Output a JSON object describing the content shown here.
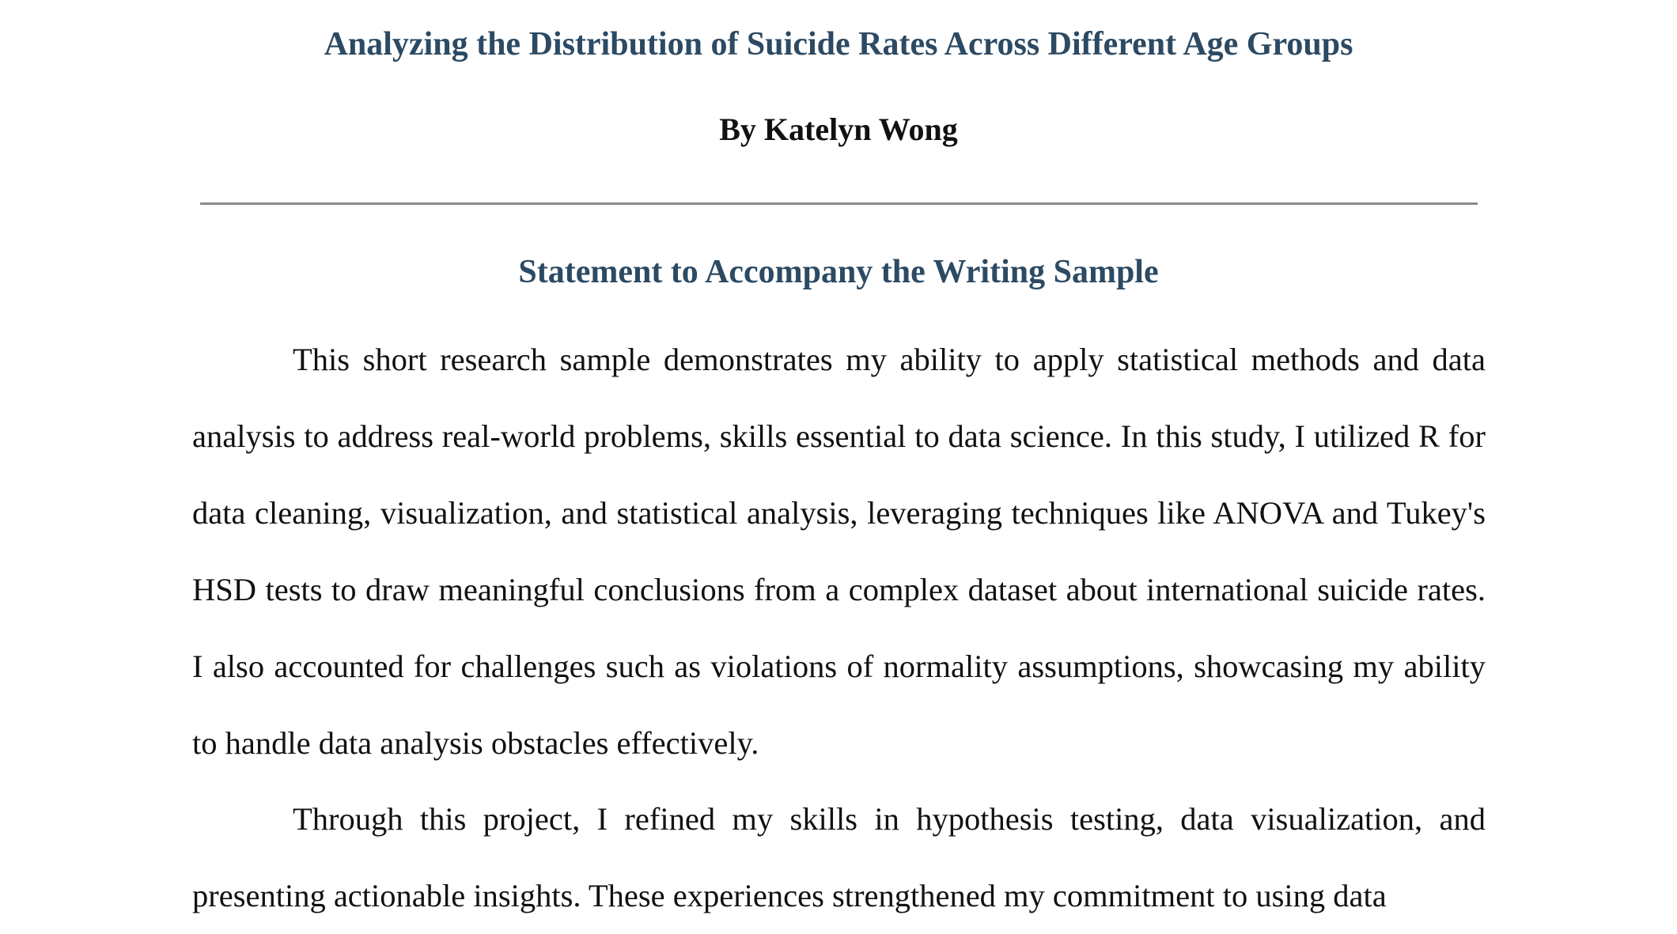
{
  "document": {
    "title": "Analyzing the Distribution of Suicide Rates Across Different Age Groups",
    "author": "By Katelyn Wong",
    "section_heading": "Statement to Accompany the Writing Sample",
    "paragraphs": [
      "This short research sample demonstrates my ability to apply statistical methods and data analysis to address real-world problems, skills essential to data science. In this study, I utilized R for data cleaning, visualization, and statistical analysis, leveraging techniques like ANOVA and Tukey's HSD tests to draw meaningful conclusions from a complex dataset about international suicide rates. I also accounted for challenges such as violations of normality assumptions, showcasing my ability to handle data analysis obstacles effectively.",
      "Through this project, I refined my skills in hypothesis testing, data visualization, and presenting actionable insights. These experiences strengthened my commitment to using data"
    ],
    "colors": {
      "heading": "#2c4a63",
      "body_text": "#111111",
      "rule": "#8a8a8a"
    }
  }
}
